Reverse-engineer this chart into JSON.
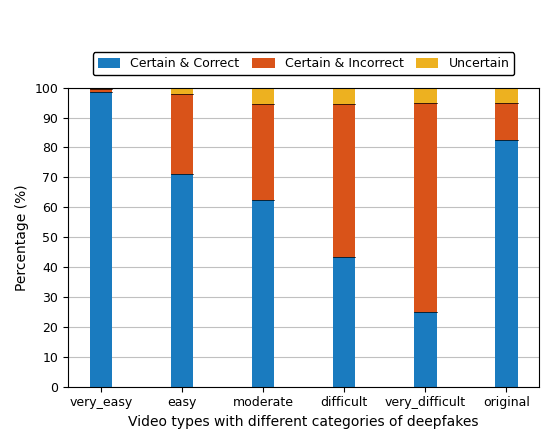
{
  "categories": [
    "very_easy",
    "easy",
    "moderate",
    "difficult",
    "very_difficult",
    "original"
  ],
  "certain_correct": [
    98.5,
    71.0,
    62.5,
    43.5,
    25.0,
    82.5
  ],
  "certain_incorrect": [
    1.0,
    27.0,
    32.0,
    51.0,
    70.0,
    12.5
  ],
  "uncertain": [
    0.5,
    2.0,
    5.5,
    5.5,
    5.0,
    5.0
  ],
  "colors": {
    "certain_correct": "#1a7bbf",
    "certain_incorrect": "#d95319",
    "uncertain": "#edb120"
  },
  "legend_labels": [
    "Certain & Correct",
    "Certain & Incorrect",
    "Uncertain"
  ],
  "xlabel": "Video types with different categories of deepfakes",
  "ylabel": "Percentage (%)",
  "ylim": [
    0,
    100
  ],
  "yticks": [
    0,
    10,
    20,
    30,
    40,
    50,
    60,
    70,
    80,
    90,
    100
  ],
  "bar_width": 0.28,
  "figsize": [
    5.54,
    4.44
  ],
  "dpi": 100
}
